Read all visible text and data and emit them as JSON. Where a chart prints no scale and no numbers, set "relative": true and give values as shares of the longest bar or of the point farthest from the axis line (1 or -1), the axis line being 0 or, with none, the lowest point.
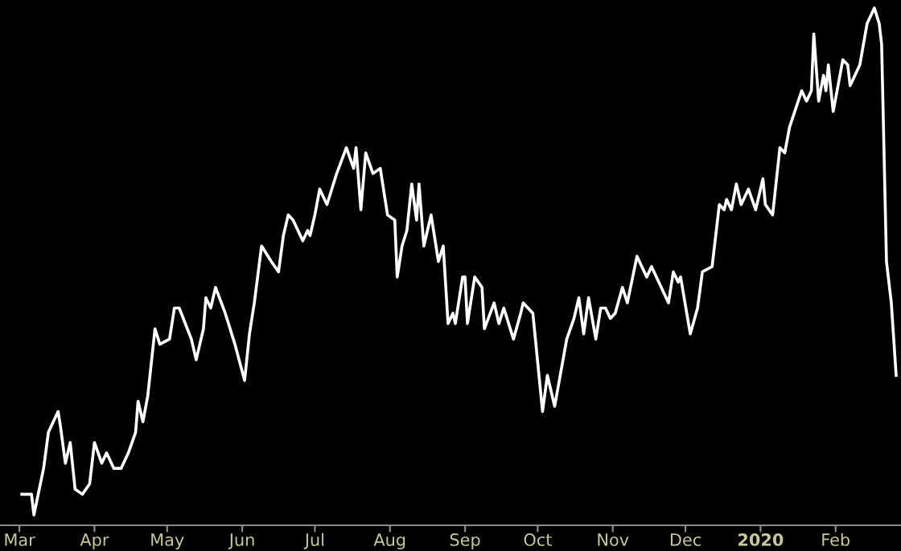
{
  "chart_data": {
    "type": "line",
    "relative": true,
    "x": [
      "2019-03-02",
      "2019-03-06",
      "2019-03-07",
      "2019-03-11",
      "2019-03-13",
      "2019-03-17",
      "2019-03-18",
      "2019-03-20",
      "2019-03-22",
      "2019-03-24",
      "2019-03-27",
      "2019-03-30",
      "2019-04-01",
      "2019-04-04",
      "2019-04-06",
      "2019-04-09",
      "2019-04-12",
      "2019-04-15",
      "2019-04-18",
      "2019-04-19",
      "2019-04-21",
      "2019-04-23",
      "2019-04-26",
      "2019-04-28",
      "2019-05-02",
      "2019-05-04",
      "2019-05-06",
      "2019-05-11",
      "2019-05-13",
      "2019-05-16",
      "2019-05-17",
      "2019-05-19",
      "2019-05-21",
      "2019-05-25",
      "2019-05-29",
      "2019-06-02",
      "2019-06-04",
      "2019-06-06",
      "2019-06-09",
      "2019-06-13",
      "2019-06-16",
      "2019-06-18",
      "2019-06-20",
      "2019-06-22",
      "2019-06-26",
      "2019-06-28",
      "2019-06-29",
      "2019-07-01",
      "2019-07-03",
      "2019-07-06",
      "2019-07-10",
      "2019-07-14",
      "2019-07-17",
      "2019-07-18",
      "2019-07-20",
      "2019-07-22",
      "2019-07-25",
      "2019-07-28",
      "2019-07-31",
      "2019-08-03",
      "2019-08-04",
      "2019-08-06",
      "2019-08-08",
      "2019-08-10",
      "2019-08-12",
      "2019-08-13",
      "2019-08-15",
      "2019-08-18",
      "2019-08-21",
      "2019-08-23",
      "2019-08-25",
      "2019-08-27",
      "2019-08-28",
      "2019-08-31",
      "2019-09-01",
      "2019-09-02",
      "2019-09-05",
      "2019-09-08",
      "2019-09-09",
      "2019-09-13",
      "2019-09-15",
      "2019-09-17",
      "2019-09-21",
      "2019-09-24",
      "2019-09-25",
      "2019-09-29",
      "2019-10-03",
      "2019-10-05",
      "2019-10-08",
      "2019-10-13",
      "2019-10-16",
      "2019-10-18",
      "2019-10-20",
      "2019-10-22",
      "2019-10-25",
      "2019-10-27",
      "2019-10-29",
      "2019-10-31",
      "2019-11-02",
      "2019-11-05",
      "2019-11-07",
      "2019-11-11",
      "2019-11-13",
      "2019-11-15",
      "2019-11-17",
      "2019-11-20",
      "2019-11-24",
      "2019-11-26",
      "2019-11-28",
      "2019-11-29",
      "2019-12-03",
      "2019-12-06",
      "2019-12-08",
      "2019-12-12",
      "2019-12-15",
      "2019-12-17",
      "2019-12-18",
      "2019-12-20",
      "2019-12-22",
      "2019-12-24",
      "2019-12-27",
      "2019-12-30",
      "2020-01-02",
      "2020-01-03",
      "2020-01-06",
      "2020-01-09",
      "2020-01-11",
      "2020-01-13",
      "2020-01-18",
      "2020-01-20",
      "2020-01-22",
      "2020-01-23",
      "2020-01-25",
      "2020-01-27",
      "2020-01-28",
      "2020-01-29",
      "2020-01-31",
      "2020-02-04",
      "2020-02-06",
      "2020-02-07",
      "2020-02-11",
      "2020-02-14",
      "2020-02-17",
      "2020-02-19",
      "2020-02-20",
      "2020-02-22",
      "2020-02-24",
      "2020-02-26"
    ],
    "series": [
      {
        "color": "#ffffff",
        "values": [
          0.06,
          0.06,
          0.02,
          0.11,
          0.18,
          0.22,
          0.19,
          0.12,
          0.16,
          0.07,
          0.06,
          0.08,
          0.16,
          0.12,
          0.14,
          0.11,
          0.11,
          0.14,
          0.18,
          0.24,
          0.2,
          0.25,
          0.38,
          0.35,
          0.36,
          0.42,
          0.42,
          0.36,
          0.32,
          0.38,
          0.44,
          0.42,
          0.46,
          0.41,
          0.35,
          0.28,
          0.37,
          0.43,
          0.54,
          0.51,
          0.49,
          0.56,
          0.6,
          0.59,
          0.55,
          0.57,
          0.56,
          0.6,
          0.65,
          0.62,
          0.68,
          0.73,
          0.69,
          0.73,
          0.61,
          0.72,
          0.68,
          0.69,
          0.6,
          0.59,
          0.48,
          0.54,
          0.57,
          0.66,
          0.59,
          0.66,
          0.54,
          0.6,
          0.51,
          0.54,
          0.39,
          0.41,
          0.39,
          0.48,
          0.48,
          0.39,
          0.48,
          0.46,
          0.38,
          0.43,
          0.39,
          0.42,
          0.36,
          0.41,
          0.43,
          0.41,
          0.22,
          0.29,
          0.23,
          0.36,
          0.4,
          0.44,
          0.37,
          0.44,
          0.36,
          0.42,
          0.42,
          0.4,
          0.41,
          0.46,
          0.43,
          0.52,
          0.5,
          0.48,
          0.5,
          0.47,
          0.43,
          0.49,
          0.47,
          0.48,
          0.37,
          0.42,
          0.49,
          0.5,
          0.62,
          0.61,
          0.63,
          0.61,
          0.66,
          0.62,
          0.65,
          0.61,
          0.67,
          0.62,
          0.6,
          0.73,
          0.72,
          0.77,
          0.84,
          0.82,
          0.84,
          0.95,
          0.82,
          0.87,
          0.84,
          0.89,
          0.8,
          0.9,
          0.89,
          0.85,
          0.89,
          0.97,
          1,
          0.97,
          0.93,
          0.51,
          0.43,
          0.29
        ]
      }
    ],
    "xlim": [
      "2019-02-21",
      "2020-02-28"
    ],
    "xticks": [
      {
        "value": "2019-03-01",
        "label": "Mar"
      },
      {
        "value": "2019-04-01",
        "label": "Apr"
      },
      {
        "value": "2019-05-01",
        "label": "May"
      },
      {
        "value": "2019-06-01",
        "label": "Jun"
      },
      {
        "value": "2019-07-01",
        "label": "Jul"
      },
      {
        "value": "2019-08-01",
        "label": "Aug"
      },
      {
        "value": "2019-09-01",
        "label": "Sep"
      },
      {
        "value": "2019-10-01",
        "label": "Oct"
      },
      {
        "value": "2019-11-01",
        "label": "Nov"
      },
      {
        "value": "2019-12-01",
        "label": "Dec"
      },
      {
        "value": "2020-01-01",
        "label": "2020"
      },
      {
        "value": "2020-02-01",
        "label": "Feb"
      }
    ],
    "tick_labels": "x",
    "grid": false,
    "legend": false,
    "marker": "none",
    "line_style": "solid"
  }
}
